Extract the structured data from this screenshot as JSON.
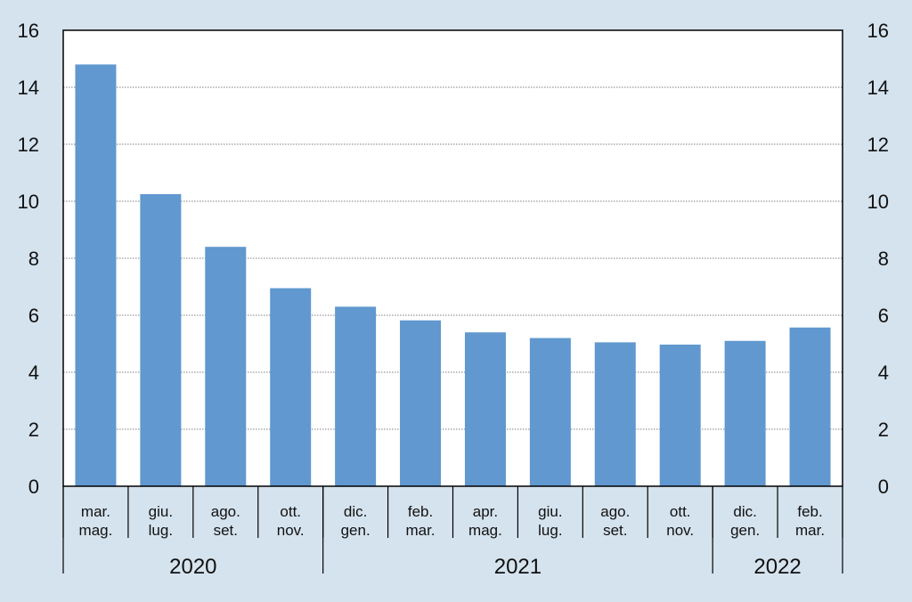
{
  "chart_data": {
    "type": "bar",
    "title": "",
    "xlabel": "",
    "ylabel": "",
    "ylim": [
      0,
      16
    ],
    "yticks": [
      0,
      2,
      4,
      6,
      8,
      10,
      12,
      14,
      16
    ],
    "grid": true,
    "bar_color": "#6098cf",
    "categories": [
      [
        "mar.",
        "mag."
      ],
      [
        "giu.",
        "lug."
      ],
      [
        "ago.",
        "set."
      ],
      [
        "ott.",
        "nov."
      ],
      [
        "dic.",
        "gen."
      ],
      [
        "feb.",
        "mar."
      ],
      [
        "apr.",
        "mag."
      ],
      [
        "giu.",
        "lug."
      ],
      [
        "ago.",
        "set."
      ],
      [
        "ott.",
        "nov."
      ],
      [
        "dic.",
        "gen."
      ],
      [
        "feb.",
        "mar."
      ]
    ],
    "values": [
      14.8,
      10.25,
      8.4,
      6.95,
      6.3,
      5.82,
      5.4,
      5.2,
      5.05,
      4.97,
      5.1,
      5.57
    ],
    "year_groups": [
      {
        "label": "2020",
        "start": 0,
        "end": 3
      },
      {
        "label": "2021",
        "start": 4,
        "end": 10
      },
      {
        "label": "2022",
        "start": 10,
        "end": 11
      }
    ]
  }
}
